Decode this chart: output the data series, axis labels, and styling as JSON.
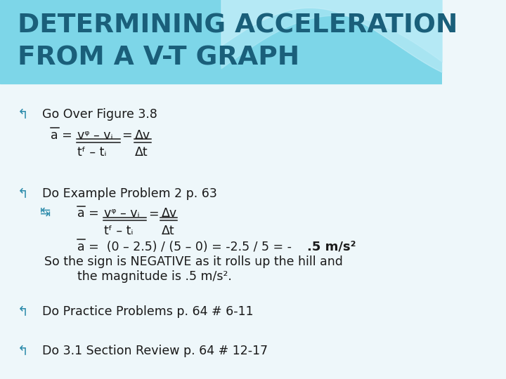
{
  "title_line1": "DETERMINING ACCELERATION",
  "title_line2": "FROM A V-T GRAPH",
  "title_color": "#1a5f7a",
  "bg_color": "#eef7fa",
  "header_color": "#7dd6e8",
  "header_light": "#b8eaf5",
  "body_text_color": "#1a1a1a",
  "bullet_color": "#2a8aaa",
  "bullet1": "Go Over Figure 3.8",
  "bullet2": "Do Example Problem 2 p. 63",
  "bullet3": "Do Practice Problems p. 64 # 6-11",
  "bullet4": "Do 3.1 Section Review p. 64 # 12-17",
  "so_line1": "So the sign is NEGATIVE as it rolls up the hill and",
  "so_line2": "the magnitude is .5 m/s²."
}
